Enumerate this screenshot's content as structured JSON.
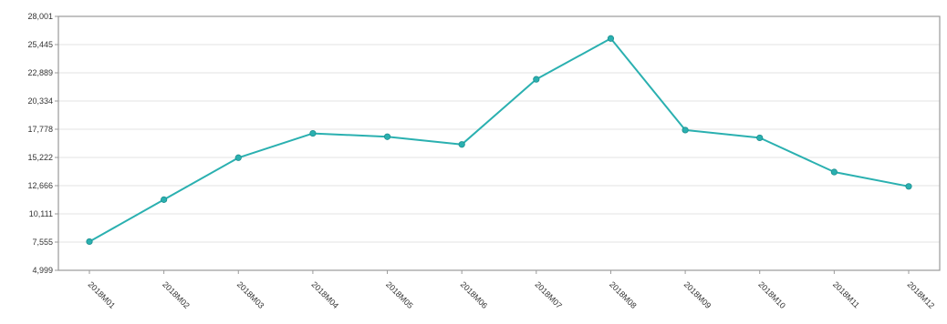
{
  "chart_data": {
    "type": "line",
    "title": "",
    "xlabel": "",
    "ylabel": "",
    "categories": [
      "2018M01",
      "2018M02",
      "2018M03",
      "2018M04",
      "2018M05",
      "2018M06",
      "2018M07",
      "2018M08",
      "2018M09",
      "2018M10",
      "2018M11",
      "2018M12"
    ],
    "series": [
      {
        "values": [
          7600,
          11400,
          15200,
          17400,
          17100,
          16400,
          22300,
          26000,
          17700,
          17000,
          13900,
          12600
        ],
        "color": "#2ab0b0"
      }
    ],
    "y_ticks": [
      "4,999",
      "7,555",
      "10,111",
      "12,666",
      "15,222",
      "17,778",
      "20,334",
      "22,889",
      "25,445",
      "28,001"
    ],
    "ylim": [
      4999,
      28001
    ],
    "grid": true,
    "legend": "none"
  }
}
